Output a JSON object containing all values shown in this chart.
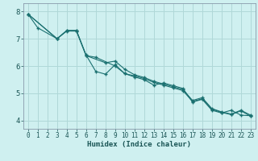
{
  "xlabel": "Humidex (Indice chaleur)",
  "background_color": "#cff0f0",
  "plot_bg_color": "#cff0f0",
  "grid_color": "#b0d8d8",
  "line_color": "#1a7070",
  "spine_color": "#8899aa",
  "xlim": [
    -0.5,
    23.5
  ],
  "ylim": [
    3.7,
    8.3
  ],
  "yticks": [
    4,
    5,
    6,
    7,
    8
  ],
  "xticks": [
    0,
    1,
    2,
    3,
    4,
    5,
    6,
    7,
    8,
    9,
    10,
    11,
    12,
    13,
    14,
    15,
    16,
    17,
    18,
    19,
    20,
    21,
    22,
    23
  ],
  "series": [
    {
      "x": [
        0,
        1,
        3,
        4,
        5,
        6,
        7,
        8,
        9,
        10,
        11,
        12,
        13,
        14,
        15,
        16,
        17,
        18,
        19,
        20,
        21,
        22,
        23
      ],
      "y": [
        7.9,
        7.4,
        7.0,
        7.3,
        7.3,
        6.4,
        5.8,
        5.7,
        6.05,
        5.72,
        5.6,
        5.5,
        5.3,
        5.38,
        5.28,
        5.18,
        4.68,
        4.78,
        4.38,
        4.28,
        4.38,
        4.2,
        4.18
      ]
    },
    {
      "x": [
        0,
        3,
        4,
        5,
        6,
        8,
        9,
        10,
        11,
        12,
        13,
        14,
        15,
        16,
        17,
        18,
        19,
        20,
        21,
        22,
        23
      ],
      "y": [
        7.9,
        7.0,
        7.28,
        7.28,
        6.38,
        6.12,
        6.18,
        5.88,
        5.68,
        5.58,
        5.44,
        5.34,
        5.24,
        5.14,
        4.74,
        4.84,
        4.44,
        4.32,
        4.24,
        4.38,
        4.2
      ]
    },
    {
      "x": [
        0,
        3,
        4,
        5,
        6,
        7,
        9,
        10,
        11,
        12,
        13,
        14,
        15,
        16,
        17,
        18,
        19,
        20,
        21,
        22,
        23
      ],
      "y": [
        7.9,
        7.0,
        7.3,
        7.3,
        6.38,
        6.32,
        6.0,
        5.72,
        5.64,
        5.54,
        5.4,
        5.3,
        5.2,
        5.1,
        4.7,
        4.8,
        4.42,
        4.3,
        4.22,
        4.36,
        4.16
      ]
    }
  ]
}
